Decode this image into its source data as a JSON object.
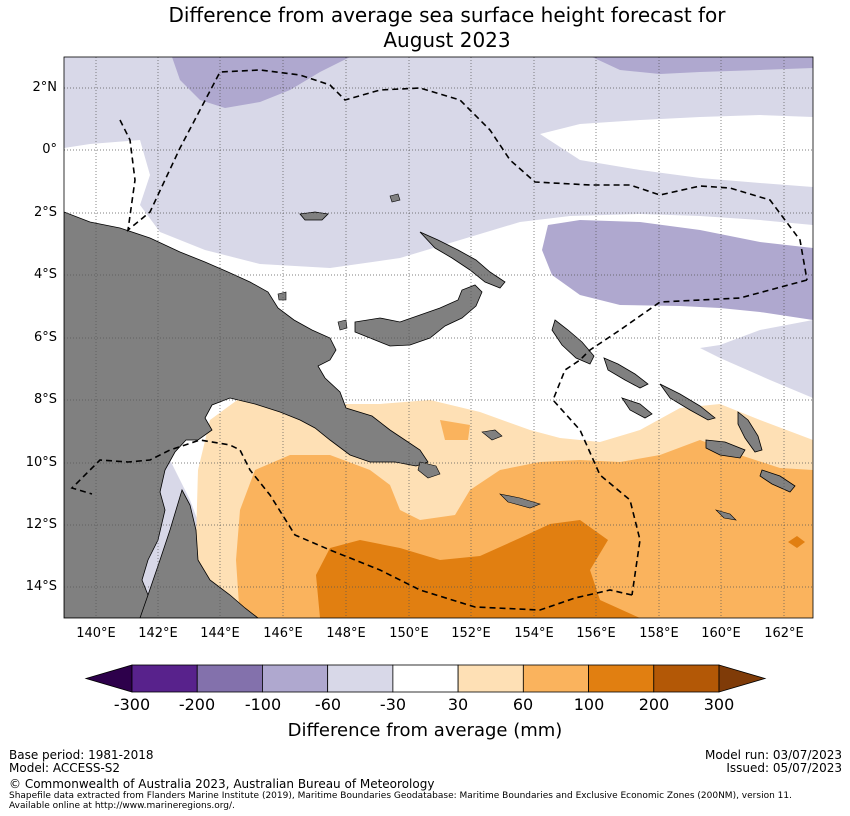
{
  "map": {
    "title_line1": "Difference from average sea surface height forecast for",
    "title_line2": "August 2023",
    "lat_labels": [
      "2°N",
      "0°",
      "2°S",
      "4°S",
      "6°S",
      "8°S",
      "10°S",
      "12°S",
      "14°S"
    ],
    "lon_labels": [
      "140°E",
      "142°E",
      "144°E",
      "146°E",
      "148°E",
      "150°E",
      "152°E",
      "154°E",
      "156°E",
      "158°E",
      "160°E",
      "162°E"
    ]
  },
  "colorbar": {
    "title": "Difference from average (mm)",
    "labels": [
      "-300",
      "-200",
      "-100",
      "-60",
      "-30",
      "30",
      "60",
      "100",
      "200",
      "300"
    ],
    "colors": [
      "#58228c",
      "#8371ac",
      "#afa8cf",
      "#d8d8e8",
      "#ffffff",
      "#fee0b5",
      "#fab35d",
      "#e17f11",
      "#b35806"
    ],
    "under_color": "#2d004b",
    "over_color": "#7f3b08"
  },
  "footer": {
    "base_period": "Base period: 1981-2018",
    "model": "Model: ACCESS-S2",
    "copyright": "© Commonwealth of Australia 2023, Australian Bureau of Meteorology",
    "shapefile1": "Shapefile data extracted from Flanders Marine Institute (2019), Maritime Boundaries Geodatabase: Maritime Boundaries and Exclusive Economic Zones (200NM), version 11.",
    "shapefile2": "Available online at http://www.marineregions.org/.",
    "model_run": "Model run: 03/07/2023",
    "issued": "Issued: 05/07/2023"
  }
}
